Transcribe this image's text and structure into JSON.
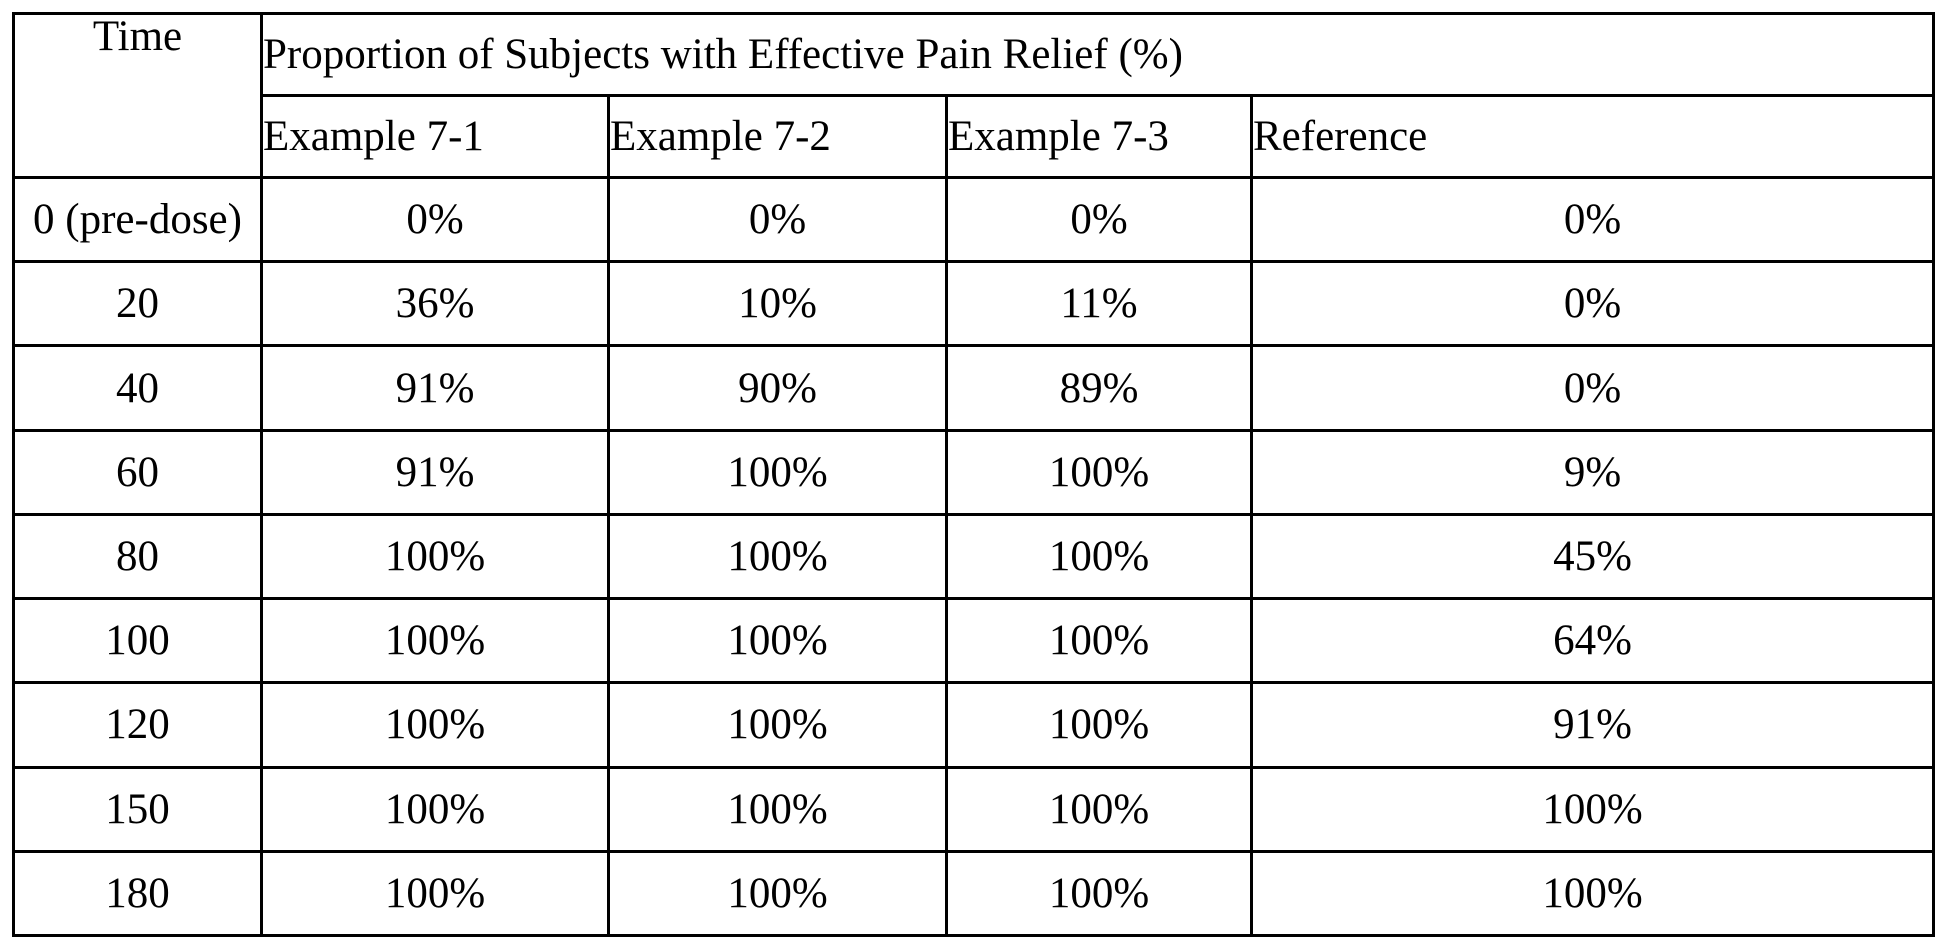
{
  "table": {
    "time_header": "Time",
    "group_header": "Proportion of Subjects with Effective Pain Relief (%)",
    "columns": [
      "Example 7-1",
      "Example 7-2",
      "Example 7-3",
      "Reference"
    ],
    "rows": [
      {
        "time": "0 (pre-dose)",
        "values": [
          "0%",
          "0%",
          "0%",
          "0%"
        ]
      },
      {
        "time": "20",
        "values": [
          "36%",
          "10%",
          "11%",
          "0%"
        ]
      },
      {
        "time": "40",
        "values": [
          "91%",
          "90%",
          "89%",
          "0%"
        ]
      },
      {
        "time": "60",
        "values": [
          "91%",
          "100%",
          "100%",
          "9%"
        ]
      },
      {
        "time": "80",
        "values": [
          "100%",
          "100%",
          "100%",
          "45%"
        ]
      },
      {
        "time": "100",
        "values": [
          "100%",
          "100%",
          "100%",
          "64%"
        ]
      },
      {
        "time": "120",
        "values": [
          "100%",
          "100%",
          "100%",
          "91%"
        ]
      },
      {
        "time": "150",
        "values": [
          "100%",
          "100%",
          "100%",
          "100%"
        ]
      },
      {
        "time": "180",
        "values": [
          "100%",
          "100%",
          "100%",
          "100%"
        ]
      }
    ]
  }
}
